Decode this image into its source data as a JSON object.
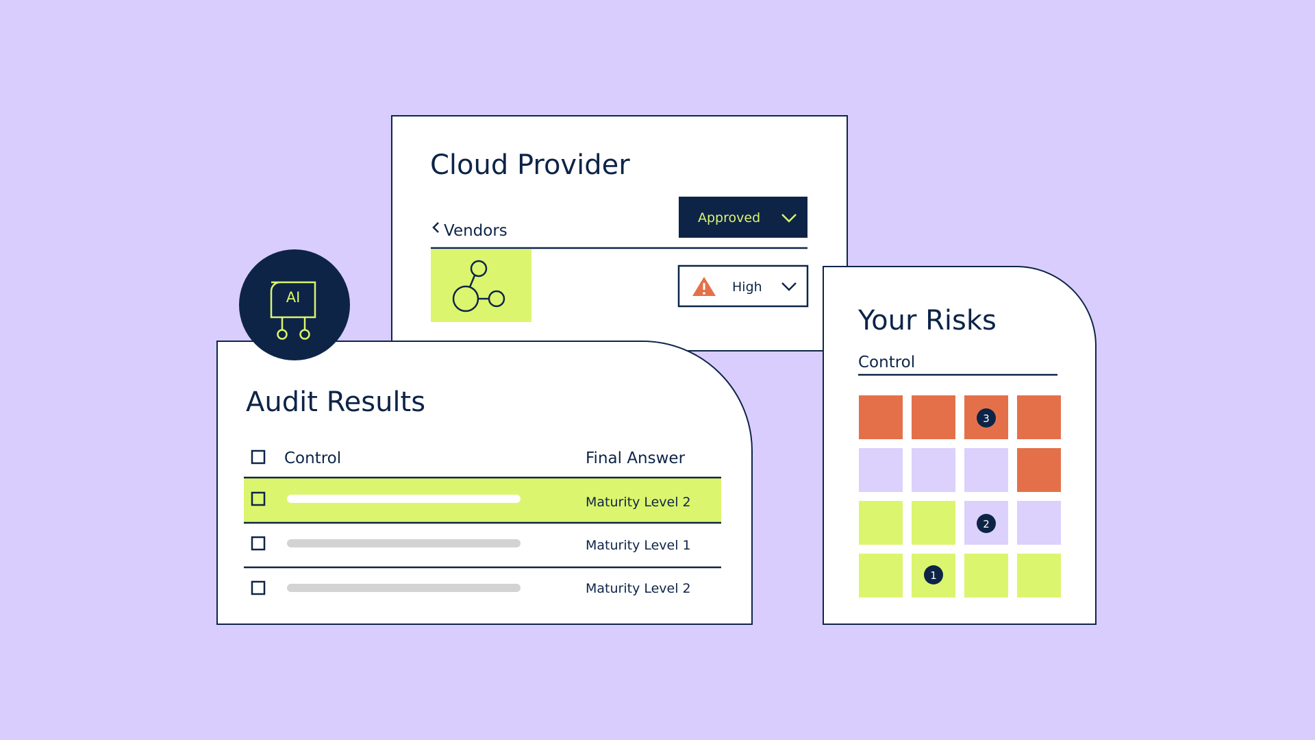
{
  "cloud": {
    "title": "Cloud Provider",
    "back": "Vendors",
    "status": "Approved",
    "risk": "High"
  },
  "badge": "AI",
  "audit": {
    "title": "Audit Results",
    "columns": [
      "Control",
      "Final Answer"
    ],
    "rows": [
      "Maturity Level 2",
      "Maturity Level 1",
      "Maturity Level 2"
    ]
  },
  "risks": {
    "title": "Your Risks",
    "subtitle": "Control",
    "markers": [
      "3",
      "2",
      "1"
    ]
  }
}
